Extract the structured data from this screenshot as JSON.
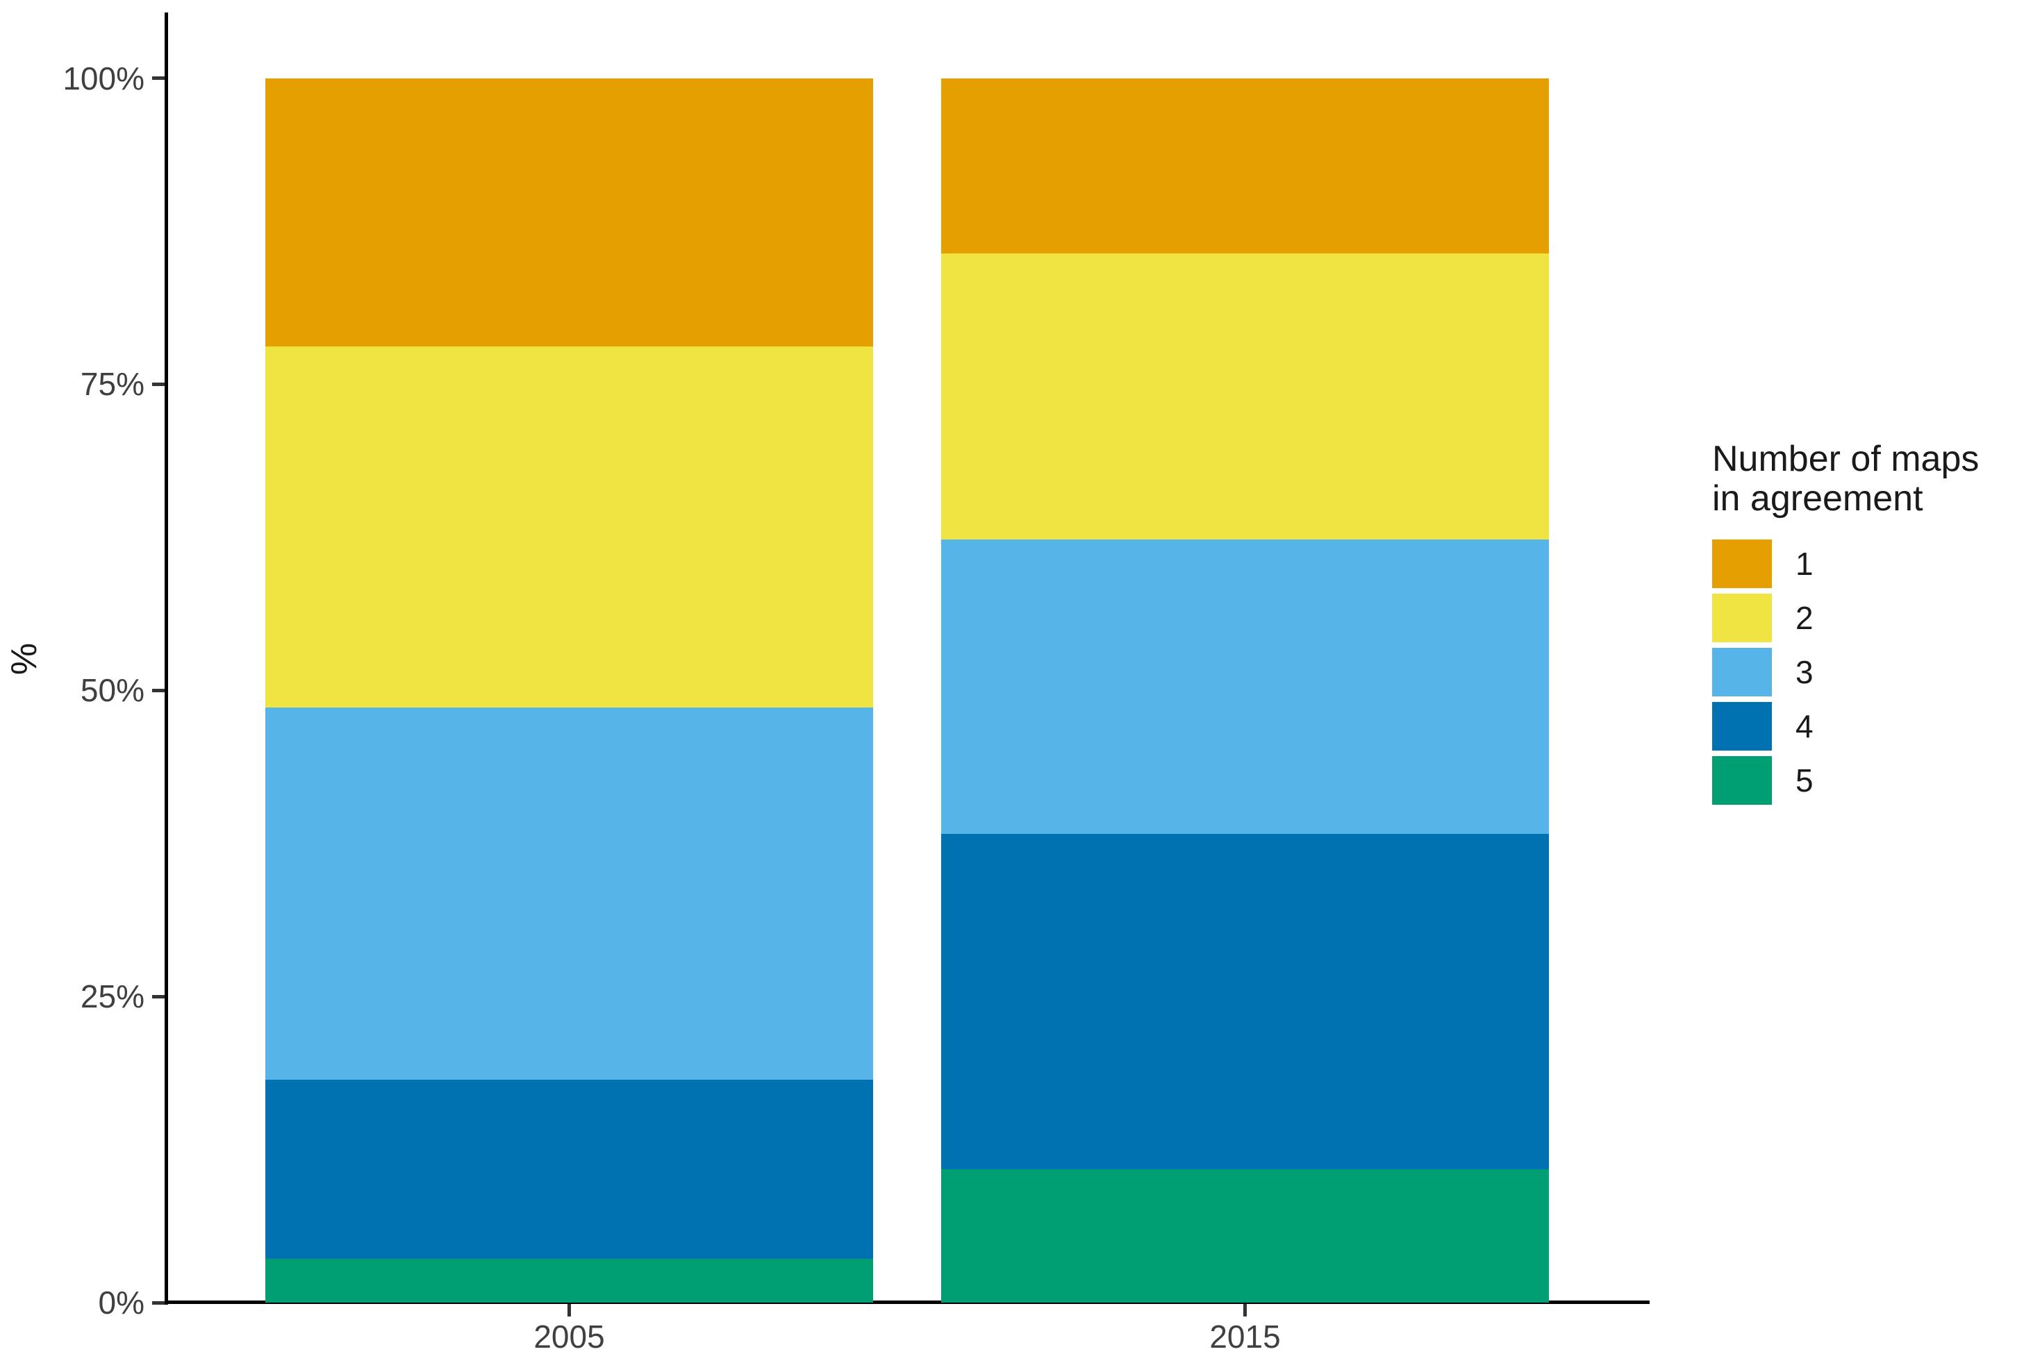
{
  "figure": {
    "background": "#FFFFFF",
    "axis_line_color": "#000000",
    "tick_color": "#333333",
    "tick_label_color": "#404040",
    "text_color": "#1A1A1A"
  },
  "chart_data": {
    "type": "bar",
    "subtype": "stacked-percent",
    "title": "",
    "xlabel": "",
    "ylabel": "%",
    "categories": [
      "2005",
      "2015"
    ],
    "series": [
      {
        "name": "1",
        "color": "#E69F00",
        "values": [
          21.9,
          14.3
        ]
      },
      {
        "name": "2",
        "color": "#F0E442",
        "values": [
          29.5,
          23.4
        ]
      },
      {
        "name": "3",
        "color": "#56B4E9",
        "values": [
          30.4,
          24.0
        ]
      },
      {
        "name": "4",
        "color": "#0072B2",
        "values": [
          14.6,
          27.4
        ]
      },
      {
        "name": "5",
        "color": "#009E73",
        "values": [
          3.6,
          10.9
        ]
      }
    ],
    "stack_order_bottom_to_top": [
      "5",
      "4",
      "3",
      "2",
      "1"
    ],
    "ytick_labels": [
      "0%",
      "25%",
      "50%",
      "75%",
      "100%"
    ],
    "ytick_values": [
      0,
      25,
      50,
      75,
      100
    ],
    "ylim": [
      0,
      100
    ],
    "grid": "off",
    "legend": {
      "position": "right",
      "title_lines": [
        "Number of maps",
        "in agreement"
      ],
      "entries": [
        {
          "label": "1",
          "color": "#E69F00"
        },
        {
          "label": "2",
          "color": "#F0E442"
        },
        {
          "label": "3",
          "color": "#56B4E9"
        },
        {
          "label": "4",
          "color": "#0072B2"
        },
        {
          "label": "5",
          "color": "#009E73"
        }
      ]
    }
  }
}
